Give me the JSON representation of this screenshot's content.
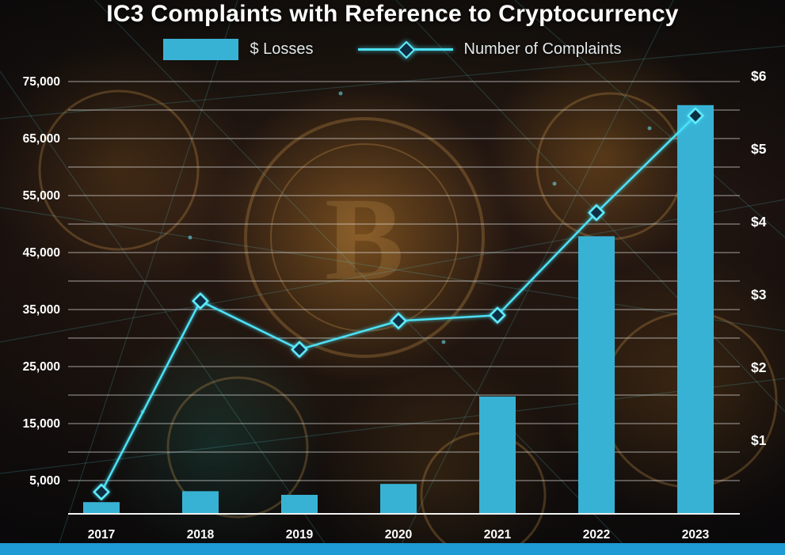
{
  "title": "IC3 Complaints with Reference to Cryptocurrency",
  "legend": {
    "losses_label": "$ Losses",
    "complaints_label": "Number of Complaints"
  },
  "colors": {
    "bar": "#38b2d4",
    "line": "#4ee1f5",
    "marker_fill": "#0c2d42",
    "marker_stroke": "#62eeff",
    "grid": "rgba(228,228,228,0.55)",
    "axis": "#f2f2f2",
    "text": "#ffffff",
    "bottom_strip": "#1e9ad4"
  },
  "chart_data": {
    "type": "bar+line combo",
    "title": "IC3 Complaints with Reference to Cryptocurrency",
    "categories": [
      "2017",
      "2018",
      "2019",
      "2020",
      "2021",
      "2022",
      "2023"
    ],
    "series": [
      {
        "name": "$ Losses",
        "type": "bar",
        "axis": "right",
        "unit": "billions USD",
        "values": [
          0.15,
          0.3,
          0.25,
          0.4,
          1.6,
          3.8,
          5.6
        ]
      },
      {
        "name": "Number of Complaints",
        "type": "line",
        "axis": "left",
        "values": [
          3000,
          36500,
          28000,
          33000,
          34000,
          52000,
          69000
        ]
      }
    ],
    "left_axis": {
      "ticks": [
        "5,000",
        "15,000",
        "25,000",
        "35,000",
        "45,000",
        "55,000",
        "65,000",
        "75,000"
      ],
      "tick_values": [
        5000,
        15000,
        25000,
        35000,
        45000,
        55000,
        65000,
        75000
      ],
      "max": 75000,
      "gridline_step": 5000
    },
    "right_axis": {
      "ticks": [
        "$1",
        "$2",
        "$3",
        "$4",
        "$5",
        "$6"
      ],
      "tick_values": [
        1,
        2,
        3,
        4,
        5,
        6
      ],
      "max": 6
    },
    "layout_hints": {
      "grid": "horizontal gridlines every 5,000 (left axis)",
      "legend_position": "top center",
      "background": "dark cryptocurrency coins photo with cyan network lines"
    }
  }
}
